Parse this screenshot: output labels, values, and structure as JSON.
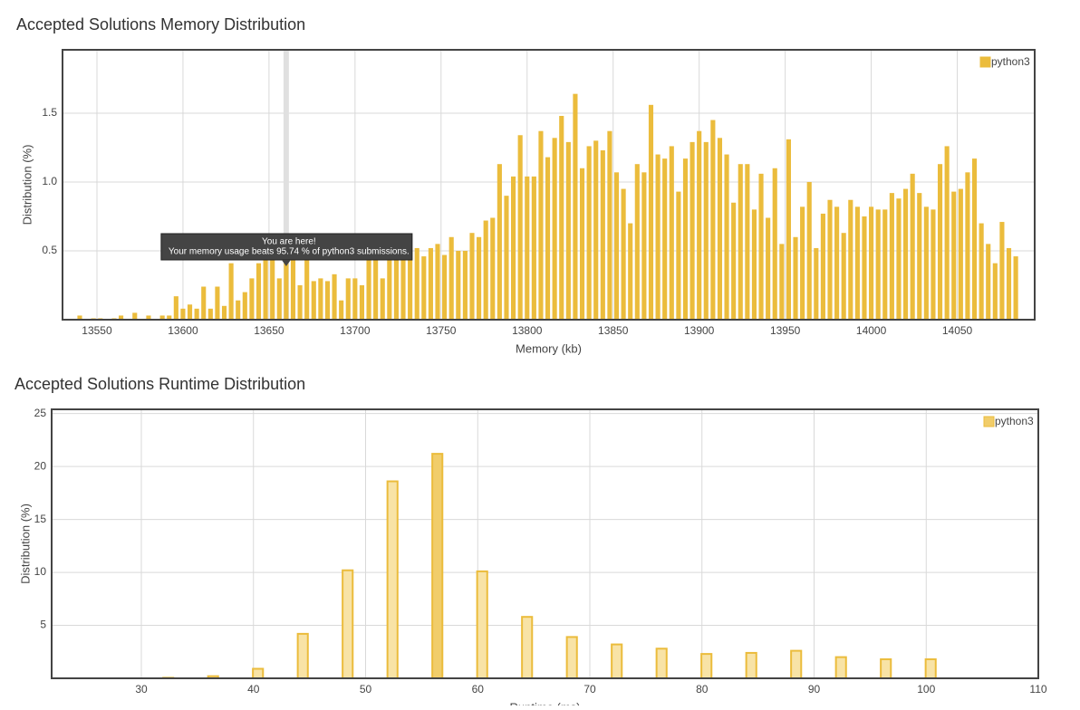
{
  "chart_data": [
    {
      "type": "bar",
      "title": "Accepted Solutions Memory Distribution",
      "x_label": "Memory (kb)",
      "y_label": "Distribution (%)",
      "series": [
        {
          "name": "python3",
          "color": "#ebbc3c",
          "x": [
            13540,
            13544,
            13548,
            13552,
            13556,
            13560,
            13564,
            13568,
            13572,
            13576,
            13580,
            13584,
            13588,
            13592,
            13596,
            13600,
            13604,
            13608,
            13612,
            13616,
            13620,
            13624,
            13628,
            13632,
            13636,
            13640,
            13644,
            13648,
            13652,
            13656,
            13660,
            13664,
            13668,
            13672,
            13676,
            13680,
            13684,
            13688,
            13692,
            13696,
            13700,
            13704,
            13708,
            13712,
            13716,
            13720,
            13724,
            13728,
            13732,
            13736,
            13740,
            13744,
            13748,
            13752,
            13756,
            13760,
            13764,
            13768,
            13772,
            13776,
            13780,
            13784,
            13788,
            13792,
            13796,
            13800,
            13804,
            13808,
            13812,
            13816,
            13820,
            13824,
            13828,
            13832,
            13836,
            13840,
            13844,
            13848,
            13852,
            13856,
            13860,
            13864,
            13868,
            13872,
            13876,
            13880,
            13884,
            13888,
            13892,
            13896,
            13900,
            13904,
            13908,
            13912,
            13916,
            13920,
            13924,
            13928,
            13932,
            13936,
            13940,
            13944,
            13948,
            13952,
            13956,
            13960,
            13964,
            13968,
            13972,
            13976,
            13980,
            13984,
            13988,
            13992,
            13996,
            14000,
            14004,
            14008,
            14012,
            14016,
            14020,
            14024,
            14028,
            14032,
            14036,
            14040,
            14044,
            14048,
            14052,
            14056,
            14060,
            14064,
            14068,
            14072,
            14076,
            14080,
            14084
          ],
          "values": [
            0.03,
            0,
            0.01,
            0.01,
            0,
            0.01,
            0.03,
            0,
            0.05,
            0,
            0.03,
            0,
            0.03,
            0.03,
            0.17,
            0.08,
            0.11,
            0.08,
            0.24,
            0.08,
            0.24,
            0.1,
            0.41,
            0.14,
            0.2,
            0.3,
            0.41,
            0.44,
            0.5,
            0.3,
            0.5,
            0.45,
            0.25,
            0.5,
            0.28,
            0.3,
            0.28,
            0.33,
            0.14,
            0.3,
            0.3,
            0.25,
            0.55,
            0.5,
            0.3,
            0.5,
            0.55,
            0.6,
            0.5,
            0.52,
            0.46,
            0.52,
            0.55,
            0.47,
            0.6,
            0.5,
            0.5,
            0.63,
            0.6,
            0.72,
            0.74,
            1.13,
            0.9,
            1.04,
            1.34,
            1.04,
            1.04,
            1.37,
            1.18,
            1.32,
            1.48,
            1.29,
            1.64,
            1.1,
            1.26,
            1.3,
            1.23,
            1.37,
            1.07,
            0.95,
            0.7,
            1.13,
            1.07,
            1.56,
            1.2,
            1.17,
            1.26,
            0.93,
            1.17,
            1.29,
            1.37,
            1.29,
            1.45,
            1.32,
            1.2,
            0.85,
            1.13,
            1.13,
            0.8,
            1.06,
            0.74,
            1.1,
            0.55,
            1.31,
            0.6,
            0.82,
            1.0,
            0.52,
            0.77,
            0.87,
            0.82,
            0.63,
            0.87,
            0.82,
            0.75,
            0.82,
            0.8,
            0.8,
            0.92,
            0.88,
            0.95,
            1.06,
            0.92,
            0.82,
            0.8,
            1.13,
            1.26,
            0.93,
            0.95,
            1.07,
            1.17,
            0.7,
            0.55,
            0.41,
            0.71,
            0.52,
            0.46
          ]
        }
      ],
      "xlim": [
        13530,
        14095
      ],
      "xticks": [
        13550,
        13600,
        13650,
        13700,
        13750,
        13800,
        13850,
        13900,
        13950,
        14000,
        14050
      ],
      "ylim": [
        0,
        1.96
      ],
      "yticks": [
        {
          "value": 0.5,
          "label": "0.5"
        },
        {
          "value": 1,
          "label": "1.0"
        },
        {
          "value": 1.5,
          "label": "1.5"
        }
      ],
      "grid": true,
      "legend": "top-right",
      "bar_width": 2.7,
      "highlight_x": 13660,
      "tooltip": {
        "title": "You are here!",
        "text": "Your memory usage beats 95.74 % of python3 submissions."
      }
    },
    {
      "type": "bar",
      "title": "Accepted Solutions Runtime Distribution",
      "x_label": "Runtime (ms)",
      "y_label": "Distribution (%)",
      "series": [
        {
          "name": "python3",
          "color": "#ebbc3c",
          "fill": "#f8e3a6",
          "highlight_fill": "#f1cd6a",
          "x": [
            32.4,
            36.4,
            40.4,
            44.4,
            48.4,
            52.4,
            56.4,
            60.4,
            64.4,
            68.4,
            72.4,
            76.4,
            80.4,
            84.4,
            88.4,
            92.4,
            96.4,
            100.4
          ],
          "values": [
            0.05,
            0.2,
            0.9,
            4.2,
            10.2,
            18.6,
            21.2,
            10.1,
            5.8,
            3.9,
            3.2,
            2.8,
            2.3,
            2.4,
            2.6,
            2.0,
            1.8,
            1.8
          ]
        }
      ],
      "xlim": [
        22,
        110
      ],
      "xticks": [
        30,
        40,
        50,
        60,
        70,
        80,
        90,
        100,
        110
      ],
      "ylim": [
        0,
        25.4
      ],
      "yticks": [
        5,
        10,
        15,
        20,
        25
      ],
      "grid": true,
      "legend": "top-right",
      "bar_width": 0.9,
      "highlight_x": 56.4
    }
  ]
}
